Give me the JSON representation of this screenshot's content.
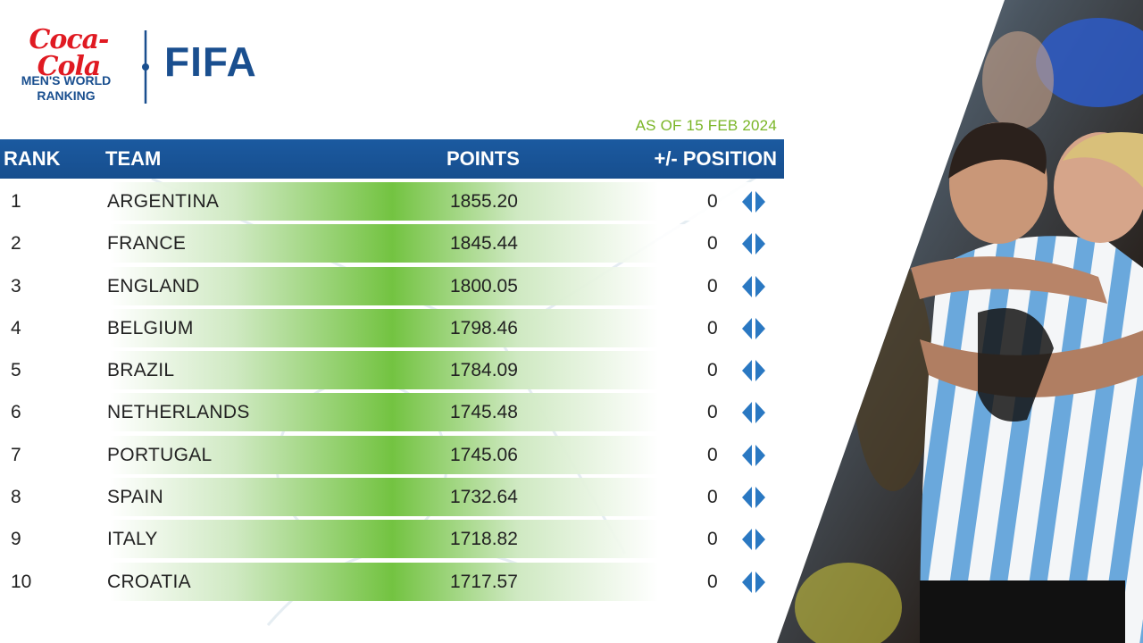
{
  "brand": {
    "sponsor_logo_text": "Coca-Cola",
    "subtitle_line1": "MEN'S WORLD",
    "subtitle_line2": "RANKING",
    "fifa_logo_text": "FIFA"
  },
  "as_of": "AS OF 15 FEB 2024",
  "table": {
    "headers": {
      "rank": "RANK",
      "team": "TEAM",
      "points": "POINTS",
      "position_change": "+/- POSITION"
    },
    "rows": [
      {
        "rank": "1",
        "team": "ARGENTINA",
        "points": "1855.20",
        "change": "0"
      },
      {
        "rank": "2",
        "team": "FRANCE",
        "points": "1845.44",
        "change": "0"
      },
      {
        "rank": "3",
        "team": "ENGLAND",
        "points": "1800.05",
        "change": "0"
      },
      {
        "rank": "4",
        "team": "BELGIUM",
        "points": "1798.46",
        "change": "0"
      },
      {
        "rank": "5",
        "team": "BRAZIL",
        "points": "1784.09",
        "change": "0"
      },
      {
        "rank": "6",
        "team": "NETHERLANDS",
        "points": "1745.48",
        "change": "0"
      },
      {
        "rank": "7",
        "team": "PORTUGAL",
        "points": "1745.06",
        "change": "0"
      },
      {
        "rank": "8",
        "team": "SPAIN",
        "points": "1732.64",
        "change": "0"
      },
      {
        "rank": "9",
        "team": "ITALY",
        "points": "1718.82",
        "change": "0"
      },
      {
        "rank": "10",
        "team": "CROATIA",
        "points": "1717.57",
        "change": "0"
      }
    ],
    "change_icon": "unchanged-arrows-icon"
  },
  "colors": {
    "header_blue": "#174e8e",
    "accent_green": "#7ab526",
    "row_green": "#73c341",
    "brand_red": "#e01a22",
    "brand_blue": "#1a4f8f",
    "jersey_blue": "#6aa8dc"
  }
}
